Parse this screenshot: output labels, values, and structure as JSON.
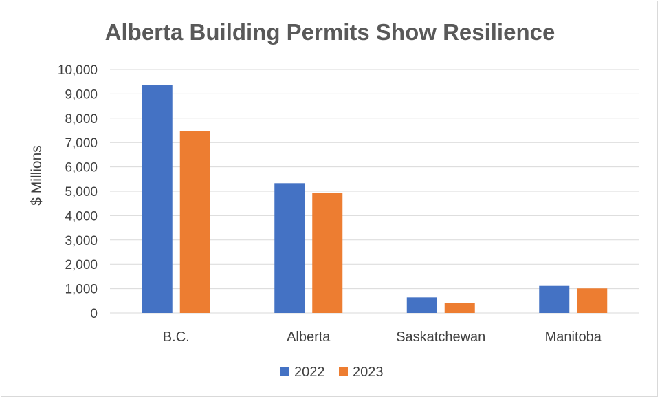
{
  "chart_data": {
    "type": "bar",
    "title": "Alberta Building Permits Show Resilience",
    "xlabel": "",
    "ylabel": "$ Millions",
    "categories": [
      "B.C.",
      "Alberta",
      "Saskatchewan",
      "Manitoba"
    ],
    "series": [
      {
        "name": "2022",
        "values": [
          9350,
          5330,
          640,
          1110
        ],
        "color": "#4472C4"
      },
      {
        "name": "2023",
        "values": [
          7480,
          4930,
          420,
          1010
        ],
        "color": "#ED7D31"
      }
    ],
    "ylim": [
      0,
      10000
    ],
    "yticks": [
      "0",
      "1,000",
      "2,000",
      "3,000",
      "4,000",
      "5,000",
      "6,000",
      "7,000",
      "8,000",
      "9,000",
      "10,000"
    ],
    "ytick_values": [
      0,
      1000,
      2000,
      3000,
      4000,
      5000,
      6000,
      7000,
      8000,
      9000,
      10000
    ],
    "grid": true,
    "legend_position": "bottom",
    "gridline_color": "#d9d9d9"
  }
}
